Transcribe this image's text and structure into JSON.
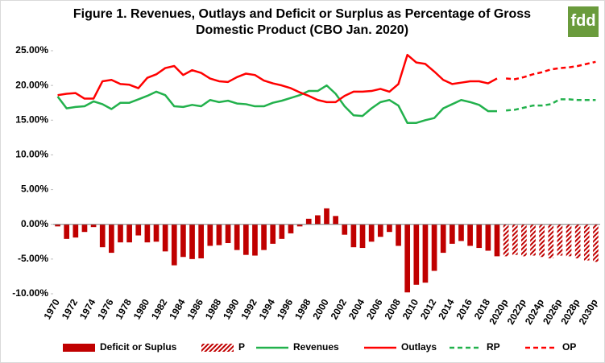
{
  "logo": "fdd",
  "chart_data": {
    "type": "combo",
    "title": "Figure 1. Revenues, Outlays and Deficit or Surplus as Percentage of Gross Domestic Product (CBO Jan. 2020)",
    "categories": [
      "1970",
      null,
      "1972",
      null,
      "1974",
      null,
      "1976",
      null,
      "1978",
      null,
      "1980",
      null,
      "1982",
      null,
      "1984",
      null,
      "1986",
      null,
      "1988",
      null,
      "1990",
      null,
      "1992",
      null,
      "1994",
      null,
      "1996",
      null,
      "1998",
      null,
      "2000",
      null,
      "2002",
      null,
      "2004",
      null,
      "2006",
      null,
      "2008",
      null,
      "2010",
      null,
      "2012",
      null,
      "2014",
      null,
      "2016",
      null,
      "2018",
      null,
      "2020p",
      null,
      "2022p",
      null,
      "2024p",
      null,
      "2026p",
      null,
      "2028p",
      null,
      "2030p"
    ],
    "ylim": [
      -10,
      25
    ],
    "yticks": [
      {
        "value": -10,
        "label": "-10.00%"
      },
      {
        "value": -5,
        "label": "-5.00%"
      },
      {
        "value": 0,
        "label": "0.00%"
      },
      {
        "value": 5,
        "label": "5.00%"
      },
      {
        "value": 10,
        "label": "10.00%"
      },
      {
        "value": 15,
        "label": "15.00%"
      },
      {
        "value": 20,
        "label": "20.00%"
      },
      {
        "value": 25,
        "label": "25.00%"
      }
    ],
    "grid": false,
    "legend": "bottom",
    "series": [
      {
        "name": "Deficit or Suplus",
        "type": "bar",
        "color": "#c00000",
        "hatched": false,
        "values": [
          -0.3,
          -2.1,
          -1.9,
          -1.1,
          -0.4,
          -3.3,
          -4.1,
          -2.6,
          -2.6,
          -1.6,
          -2.6,
          -2.5,
          -3.9,
          -5.9,
          -4.7,
          -5.0,
          -4.9,
          -3.1,
          -3.0,
          -2.7,
          -3.7,
          -4.4,
          -4.5,
          -3.7,
          -2.8,
          -2.1,
          -1.3,
          -0.3,
          0.8,
          1.3,
          2.3,
          1.2,
          -1.5,
          -3.3,
          -3.4,
          -2.5,
          -1.8,
          -1.1,
          -3.1,
          -9.8,
          -8.7,
          -8.4,
          -6.7,
          -4.1,
          -2.8,
          -2.4,
          -3.1,
          -3.4,
          -3.8,
          -4.6,
          null,
          null,
          null,
          null,
          null,
          null,
          null,
          null,
          null,
          null,
          null
        ]
      },
      {
        "name": "P",
        "type": "bar",
        "color": "#c00000",
        "hatched": true,
        "values": [
          null,
          null,
          null,
          null,
          null,
          null,
          null,
          null,
          null,
          null,
          null,
          null,
          null,
          null,
          null,
          null,
          null,
          null,
          null,
          null,
          null,
          null,
          null,
          null,
          null,
          null,
          null,
          null,
          null,
          null,
          null,
          null,
          null,
          null,
          null,
          null,
          null,
          null,
          null,
          null,
          null,
          null,
          null,
          null,
          null,
          null,
          null,
          null,
          null,
          null,
          -4.6,
          -4.4,
          -4.6,
          -4.5,
          -4.7,
          -4.9,
          -4.5,
          -4.6,
          -4.9,
          -5.2,
          -5.4
        ]
      },
      {
        "name": "Revenues",
        "type": "line",
        "color": "#22b14c",
        "dashed": false,
        "values": [
          18.4,
          16.7,
          16.9,
          17.0,
          17.7,
          17.3,
          16.6,
          17.5,
          17.5,
          18.0,
          18.5,
          19.1,
          18.6,
          17.0,
          16.9,
          17.2,
          17.0,
          17.9,
          17.6,
          17.8,
          17.4,
          17.3,
          17.0,
          17.0,
          17.5,
          17.8,
          18.2,
          18.6,
          19.2,
          19.2,
          20.0,
          18.8,
          17.0,
          15.7,
          15.6,
          16.7,
          17.6,
          17.9,
          17.1,
          14.6,
          14.6,
          15.0,
          15.3,
          16.7,
          17.3,
          17.9,
          17.6,
          17.2,
          16.3,
          16.3,
          null,
          null,
          null,
          null,
          null,
          null,
          null,
          null,
          null,
          null,
          null
        ]
      },
      {
        "name": "Outlays",
        "type": "line",
        "color": "#ff0000",
        "dashed": false,
        "values": [
          18.6,
          18.8,
          18.9,
          18.1,
          18.1,
          20.6,
          20.8,
          20.2,
          20.1,
          19.6,
          21.1,
          21.6,
          22.5,
          22.8,
          21.5,
          22.2,
          21.8,
          21.0,
          20.6,
          20.5,
          21.2,
          21.7,
          21.5,
          20.7,
          20.3,
          20.0,
          19.6,
          19.0,
          18.5,
          17.9,
          17.6,
          17.6,
          18.5,
          19.1,
          19.1,
          19.2,
          19.5,
          19.1,
          20.2,
          24.4,
          23.3,
          23.1,
          22.0,
          20.8,
          20.2,
          20.4,
          20.6,
          20.6,
          20.3,
          21.0,
          null,
          null,
          null,
          null,
          null,
          null,
          null,
          null,
          null,
          null,
          null
        ]
      },
      {
        "name": "RP",
        "type": "line",
        "color": "#22b14c",
        "dashed": true,
        "values": [
          null,
          null,
          null,
          null,
          null,
          null,
          null,
          null,
          null,
          null,
          null,
          null,
          null,
          null,
          null,
          null,
          null,
          null,
          null,
          null,
          null,
          null,
          null,
          null,
          null,
          null,
          null,
          null,
          null,
          null,
          null,
          null,
          null,
          null,
          null,
          null,
          null,
          null,
          null,
          null,
          null,
          null,
          null,
          null,
          null,
          null,
          null,
          null,
          null,
          null,
          16.4,
          16.5,
          16.8,
          17.1,
          17.1,
          17.3,
          18.0,
          18.0,
          17.9,
          17.9,
          17.9
        ]
      },
      {
        "name": "OP",
        "type": "line",
        "color": "#ff0000",
        "dashed": true,
        "values": [
          null,
          null,
          null,
          null,
          null,
          null,
          null,
          null,
          null,
          null,
          null,
          null,
          null,
          null,
          null,
          null,
          null,
          null,
          null,
          null,
          null,
          null,
          null,
          null,
          null,
          null,
          null,
          null,
          null,
          null,
          null,
          null,
          null,
          null,
          null,
          null,
          null,
          null,
          null,
          null,
          null,
          null,
          null,
          null,
          null,
          null,
          null,
          null,
          null,
          null,
          21.0,
          20.9,
          21.2,
          21.6,
          21.9,
          22.3,
          22.5,
          22.6,
          22.8,
          23.1,
          23.4
        ]
      }
    ]
  }
}
